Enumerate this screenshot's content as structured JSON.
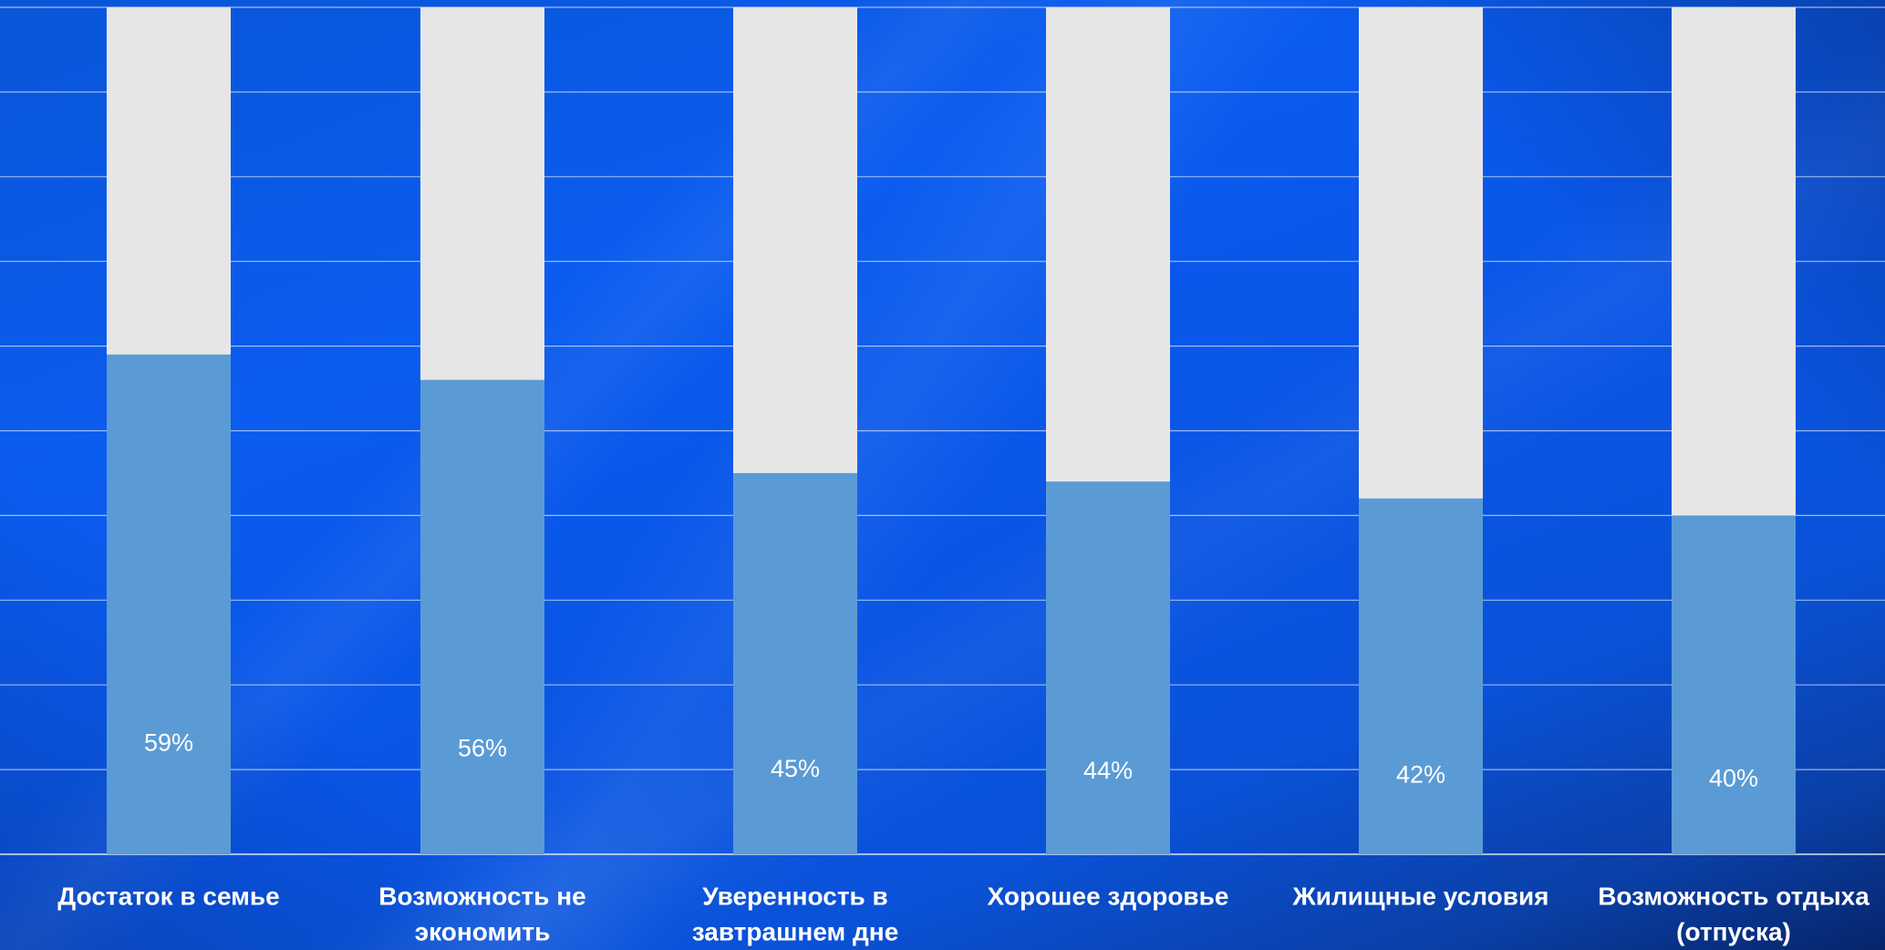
{
  "chart_data": {
    "type": "bar",
    "stacked": true,
    "categories": [
      "Достаток в семье",
      "Возможность не экономить",
      "Уверенность в завтрашнем дне",
      "Хорошее здоровье",
      "Жилищные условия",
      "Возможность отдыха (отпуска)"
    ],
    "category_lines": [
      [
        "Достаток в семье"
      ],
      [
        "Возможность не",
        "экономить"
      ],
      [
        "Уверенность в",
        "завтрашнем дне"
      ],
      [
        "Хорошее здоровье"
      ],
      [
        "Жилищные условия"
      ],
      [
        "Возможность отдыха",
        "(отпуска)"
      ]
    ],
    "series": [
      {
        "values": [
          59,
          56,
          45,
          44,
          42,
          40
        ],
        "labels": [
          "59%",
          "56%",
          "45%",
          "44%",
          "42%",
          "40%"
        ],
        "color": "#5b9bd5"
      },
      {
        "values": [
          41,
          44,
          55,
          56,
          58,
          60
        ],
        "color": "#e6e6e6"
      }
    ],
    "ylim": [
      0,
      100
    ],
    "grid": true,
    "legend": "none",
    "title": "",
    "xlabel": "",
    "ylabel": ""
  },
  "colors": {
    "background": "#0b5cf0",
    "gridline": "#ffffff",
    "label_text": "#ffffff"
  }
}
